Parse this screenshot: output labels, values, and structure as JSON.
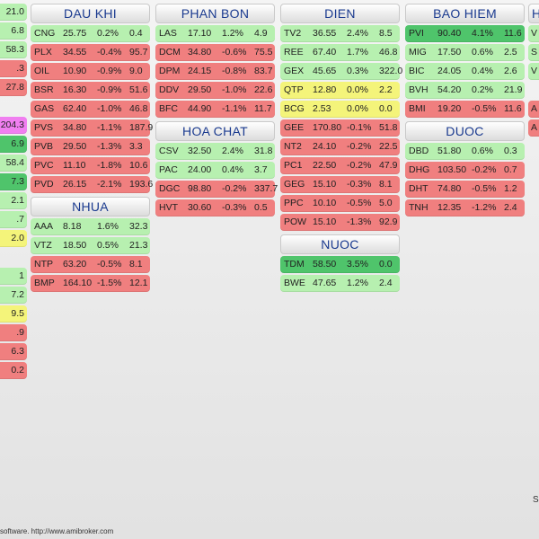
{
  "colors": {
    "strong_green": "#4fc46b",
    "green": "#8de38f",
    "light_green": "#b7f0b0",
    "yellow": "#f4f47a",
    "red": "#f07f7f",
    "light_red": "#f6a3a3",
    "magenta": "#f07ff0",
    "header_text": "#1a3a8f"
  },
  "edge_left": {
    "cells": [
      {
        "text": "21.0",
        "tone": "light_green"
      },
      {
        "text": "6.8",
        "tone": "light_green"
      },
      {
        "text": "58.3",
        "tone": "light_green"
      },
      {
        "text": ".3",
        "tone": "red"
      },
      {
        "text": "27.8",
        "tone": "red"
      },
      {
        "text": "",
        "tone": "gap"
      },
      {
        "text": "204.3",
        "tone": "magenta"
      },
      {
        "text": "6.9",
        "tone": "strong_green"
      },
      {
        "text": "58.4",
        "tone": "light_green"
      },
      {
        "text": "7.3",
        "tone": "strong_green"
      },
      {
        "text": "2.1",
        "tone": "light_green"
      },
      {
        "text": ".7",
        "tone": "light_green"
      },
      {
        "text": "2.0",
        "tone": "yellow"
      },
      {
        "text": "",
        "tone": "gap"
      },
      {
        "text": "1",
        "tone": "light_green"
      },
      {
        "text": "7.2",
        "tone": "light_green"
      },
      {
        "text": "9.5",
        "tone": "yellow"
      },
      {
        "text": ".9",
        "tone": "red"
      },
      {
        "text": "6.3",
        "tone": "red"
      },
      {
        "text": "0.2",
        "tone": "red"
      }
    ]
  },
  "columns": [
    {
      "groups": [
        {
          "title": "DAU KHI",
          "rows": [
            {
              "sym": "CNG",
              "price": "25.75",
              "chg": "0.2%",
              "vol": "0.4",
              "tone": "light_green"
            },
            {
              "sym": "PLX",
              "price": "34.55",
              "chg": "-0.4%",
              "vol": "95.7",
              "tone": "red"
            },
            {
              "sym": "OIL",
              "price": "10.90",
              "chg": "-0.9%",
              "vol": "9.0",
              "tone": "red"
            },
            {
              "sym": "BSR",
              "price": "16.30",
              "chg": "-0.9%",
              "vol": "51.6",
              "tone": "red"
            },
            {
              "sym": "GAS",
              "price": "62.40",
              "chg": "-1.0%",
              "vol": "46.8",
              "tone": "red"
            },
            {
              "sym": "PVS",
              "price": "34.80",
              "chg": "-1.1%",
              "vol": "187.9",
              "tone": "red"
            },
            {
              "sym": "PVB",
              "price": "29.50",
              "chg": "-1.3%",
              "vol": "3.3",
              "tone": "red"
            },
            {
              "sym": "PVC",
              "price": "11.10",
              "chg": "-1.8%",
              "vol": "10.6",
              "tone": "red"
            },
            {
              "sym": "PVD",
              "price": "26.15",
              "chg": "-2.1%",
              "vol": "193.6",
              "tone": "red"
            }
          ]
        },
        {
          "title": "NHUA",
          "rows": [
            {
              "sym": "AAA",
              "price": "8.18",
              "chg": "1.6%",
              "vol": "32.3",
              "tone": "light_green"
            },
            {
              "sym": "VTZ",
              "price": "18.50",
              "chg": "0.5%",
              "vol": "21.3",
              "tone": "light_green"
            },
            {
              "sym": "NTP",
              "price": "63.20",
              "chg": "-0.5%",
              "vol": "8.1",
              "tone": "red"
            },
            {
              "sym": "BMP",
              "price": "164.10",
              "chg": "-1.5%",
              "vol": "12.1",
              "tone": "red"
            }
          ]
        }
      ]
    },
    {
      "groups": [
        {
          "title": "PHAN BON",
          "rows": [
            {
              "sym": "LAS",
              "price": "17.10",
              "chg": "1.2%",
              "vol": "4.9",
              "tone": "light_green"
            },
            {
              "sym": "DCM",
              "price": "34.80",
              "chg": "-0.6%",
              "vol": "75.5",
              "tone": "red"
            },
            {
              "sym": "DPM",
              "price": "24.15",
              "chg": "-0.8%",
              "vol": "83.7",
              "tone": "red"
            },
            {
              "sym": "DDV",
              "price": "29.50",
              "chg": "-1.0%",
              "vol": "22.6",
              "tone": "red"
            },
            {
              "sym": "BFC",
              "price": "44.90",
              "chg": "-1.1%",
              "vol": "11.7",
              "tone": "red"
            }
          ]
        },
        {
          "title": "HOA CHAT",
          "rows": [
            {
              "sym": "CSV",
              "price": "32.50",
              "chg": "2.4%",
              "vol": "31.8",
              "tone": "light_green"
            },
            {
              "sym": "PAC",
              "price": "24.00",
              "chg": "0.4%",
              "vol": "3.7",
              "tone": "light_green"
            },
            {
              "sym": "DGC",
              "price": "98.80",
              "chg": "-0.2%",
              "vol": "337.7",
              "tone": "red"
            },
            {
              "sym": "HVT",
              "price": "30.60",
              "chg": "-0.3%",
              "vol": "0.5",
              "tone": "red"
            }
          ]
        }
      ]
    },
    {
      "groups": [
        {
          "title": "DIEN",
          "rows": [
            {
              "sym": "TV2",
              "price": "36.55",
              "chg": "2.4%",
              "vol": "8.5",
              "tone": "light_green"
            },
            {
              "sym": "REE",
              "price": "67.40",
              "chg": "1.7%",
              "vol": "46.8",
              "tone": "light_green"
            },
            {
              "sym": "GEX",
              "price": "45.65",
              "chg": "0.3%",
              "vol": "322.0",
              "tone": "light_green"
            },
            {
              "sym": "QTP",
              "price": "12.80",
              "chg": "0.0%",
              "vol": "2.2",
              "tone": "yellow"
            },
            {
              "sym": "BCG",
              "price": "2.53",
              "chg": "0.0%",
              "vol": "0.0",
              "tone": "yellow"
            },
            {
              "sym": "GEE",
              "price": "170.80",
              "chg": "-0.1%",
              "vol": "51.8",
              "tone": "red"
            },
            {
              "sym": "NT2",
              "price": "24.10",
              "chg": "-0.2%",
              "vol": "22.5",
              "tone": "red"
            },
            {
              "sym": "PC1",
              "price": "22.50",
              "chg": "-0.2%",
              "vol": "47.9",
              "tone": "red"
            },
            {
              "sym": "GEG",
              "price": "15.10",
              "chg": "-0.3%",
              "vol": "8.1",
              "tone": "red"
            },
            {
              "sym": "PPC",
              "price": "10.10",
              "chg": "-0.5%",
              "vol": "5.0",
              "tone": "red"
            },
            {
              "sym": "POW",
              "price": "15.10",
              "chg": "-1.3%",
              "vol": "92.9",
              "tone": "red"
            }
          ]
        },
        {
          "title": "NUOC",
          "rows": [
            {
              "sym": "TDM",
              "price": "58.50",
              "chg": "3.5%",
              "vol": "0.0",
              "tone": "strong_green"
            },
            {
              "sym": "BWE",
              "price": "47.65",
              "chg": "1.2%",
              "vol": "2.4",
              "tone": "light_green"
            }
          ]
        }
      ]
    },
    {
      "groups": [
        {
          "title": "BAO HIEM",
          "rows": [
            {
              "sym": "PVI",
              "price": "90.40",
              "chg": "4.1%",
              "vol": "11.6",
              "tone": "strong_green"
            },
            {
              "sym": "MIG",
              "price": "17.50",
              "chg": "0.6%",
              "vol": "2.5",
              "tone": "light_green"
            },
            {
              "sym": "BIC",
              "price": "24.05",
              "chg": "0.4%",
              "vol": "2.6",
              "tone": "light_green"
            },
            {
              "sym": "BVH",
              "price": "54.20",
              "chg": "0.2%",
              "vol": "21.9",
              "tone": "light_green"
            },
            {
              "sym": "BMI",
              "price": "19.20",
              "chg": "-0.5%",
              "vol": "11.6",
              "tone": "red"
            }
          ]
        },
        {
          "title": "DUOC",
          "rows": [
            {
              "sym": "DBD",
              "price": "51.80",
              "chg": "0.6%",
              "vol": "0.3",
              "tone": "light_green"
            },
            {
              "sym": "DHG",
              "price": "103.50",
              "chg": "-0.2%",
              "vol": "0.7",
              "tone": "red"
            },
            {
              "sym": "DHT",
              "price": "74.80",
              "chg": "-0.5%",
              "vol": "1.2",
              "tone": "red"
            },
            {
              "sym": "TNH",
              "price": "12.35",
              "chg": "-1.2%",
              "vol": "2.4",
              "tone": "red"
            }
          ]
        }
      ]
    }
  ],
  "edge_right": {
    "header": "H",
    "cells": [
      {
        "text": "V",
        "tone": "light_green"
      },
      {
        "text": "S",
        "tone": "light_green"
      },
      {
        "text": "V",
        "tone": "light_green"
      },
      {
        "text": "",
        "tone": "gap"
      },
      {
        "text": "A",
        "tone": "red"
      },
      {
        "text": "A",
        "tone": "red"
      }
    ]
  },
  "footer": {
    "text": "software. http://www.amibroker.com",
    "right_text": "S"
  }
}
